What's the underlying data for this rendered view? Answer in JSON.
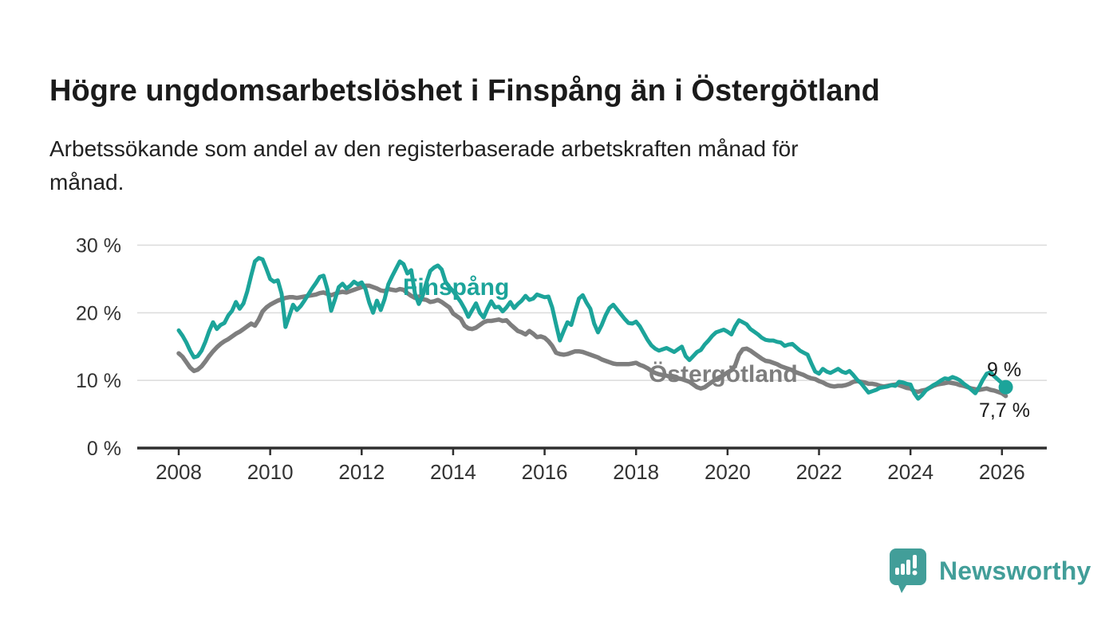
{
  "header": {
    "title": "Högre ungdomsarbetslöshet i Finspång än i Östergötland",
    "subtitle_line1": "Arbetssökande som andel av den registerbaserade arbetskraften månad för",
    "subtitle_line2": "månad."
  },
  "chart_data": {
    "type": "line",
    "title": "Högre ungdomsarbetslöshet i Finspång än i Östergötland",
    "subtitle": "Arbetssökande som andel av den registerbaserade arbetskraften månad för månad.",
    "x_start": "2008-01",
    "x_end": "2026-02",
    "frequency": "monthly",
    "ylim": [
      0,
      30
    ],
    "grid": "horizontal",
    "yticks": [
      {
        "value": 0,
        "label": "0 %"
      },
      {
        "value": 10,
        "label": "10 %"
      },
      {
        "value": 20,
        "label": "20 %"
      },
      {
        "value": 30,
        "label": "30 %"
      }
    ],
    "xticks": [
      {
        "year": 2008,
        "label": "2008"
      },
      {
        "year": 2010,
        "label": "2010"
      },
      {
        "year": 2012,
        "label": "2012"
      },
      {
        "year": 2014,
        "label": "2014"
      },
      {
        "year": 2016,
        "label": "2016"
      },
      {
        "year": 2018,
        "label": "2018"
      },
      {
        "year": 2020,
        "label": "2020"
      },
      {
        "year": 2022,
        "label": "2022"
      },
      {
        "year": 2024,
        "label": "2024"
      },
      {
        "year": 2026,
        "label": "2026"
      }
    ],
    "series": [
      {
        "name": "Finspång",
        "color": "#1ca49a",
        "end_label": "9 %",
        "end_value": 9.0,
        "values": [
          17.4,
          16.6,
          15.6,
          14.4,
          13.4,
          13.6,
          14.4,
          15.7,
          17.3,
          18.6,
          17.6,
          18.2,
          18.5,
          19.6,
          20.3,
          21.6,
          20.6,
          21.4,
          23.2,
          25.5,
          27.6,
          28.1,
          27.9,
          26.5,
          25.0,
          24.6,
          24.8,
          22.8,
          17.9,
          19.5,
          21.2,
          20.4,
          21.0,
          21.8,
          22.7,
          23.6,
          24.4,
          25.3,
          25.5,
          23.5,
          20.3,
          22.0,
          23.8,
          24.3,
          23.6,
          24.0,
          24.6,
          24.2,
          24.5,
          23.5,
          21.5,
          20.0,
          21.8,
          20.4,
          22.0,
          24.2,
          25.4,
          26.5,
          27.6,
          27.2,
          25.8,
          26.3,
          22.8,
          21.3,
          22.5,
          24.5,
          26.2,
          26.7,
          27.0,
          26.4,
          24.6,
          23.8,
          23.2,
          22.4,
          21.6,
          20.6,
          19.4,
          20.4,
          21.4,
          20.0,
          19.3,
          20.6,
          21.7,
          20.8,
          20.9,
          20.2,
          20.8,
          21.6,
          20.7,
          21.3,
          21.8,
          22.5,
          21.9,
          22.1,
          22.7,
          22.5,
          22.3,
          22.4,
          20.8,
          18.3,
          15.9,
          17.3,
          18.6,
          18.2,
          20.2,
          22.1,
          22.6,
          21.5,
          20.6,
          18.4,
          17.1,
          18.2,
          19.6,
          20.7,
          21.2,
          20.5,
          19.8,
          19.1,
          18.5,
          18.4,
          18.7,
          18.0,
          17.0,
          16.0,
          15.2,
          14.7,
          14.4,
          14.6,
          14.8,
          14.5,
          14.2,
          14.6,
          15.0,
          13.6,
          13.0,
          13.6,
          14.2,
          14.5,
          15.3,
          15.9,
          16.6,
          17.1,
          17.3,
          17.5,
          17.2,
          16.8,
          18.0,
          18.9,
          18.6,
          18.3,
          17.6,
          17.2,
          16.8,
          16.3,
          16.0,
          15.9,
          15.9,
          15.7,
          15.6,
          15.1,
          15.3,
          15.4,
          14.9,
          14.4,
          14.1,
          13.8,
          12.5,
          11.3,
          11.0,
          11.7,
          11.3,
          11.1,
          11.4,
          11.7,
          11.3,
          11.1,
          11.4,
          10.8,
          10.1,
          9.6,
          8.9,
          8.2,
          8.4,
          8.6,
          8.9,
          9.0,
          9.1,
          9.3,
          9.2,
          9.8,
          9.7,
          9.5,
          9.4,
          8.1,
          7.3,
          7.8,
          8.5,
          8.9,
          9.3,
          9.6,
          10.0,
          10.3,
          10.2,
          10.5,
          10.3,
          10.0,
          9.5,
          9.1,
          8.6,
          8.1,
          9.0,
          10.1,
          11.0,
          11.2,
          10.6,
          10.1,
          9.6,
          9.0
        ]
      },
      {
        "name": "Östergötland",
        "color": "#7e7e7e",
        "end_label": "7,7 %",
        "end_value": 7.7,
        "values": [
          14.0,
          13.5,
          12.7,
          11.9,
          11.4,
          11.6,
          12.1,
          12.8,
          13.6,
          14.3,
          14.9,
          15.4,
          15.8,
          16.1,
          16.5,
          16.9,
          17.2,
          17.6,
          18.0,
          18.4,
          18.1,
          19.0,
          20.2,
          20.8,
          21.2,
          21.5,
          21.8,
          22.0,
          22.2,
          22.3,
          22.3,
          22.2,
          22.3,
          22.4,
          22.5,
          22.6,
          22.7,
          22.9,
          23.0,
          22.8,
          22.6,
          22.8,
          23.0,
          23.1,
          23.0,
          23.2,
          23.4,
          23.6,
          23.8,
          24.0,
          24.0,
          23.8,
          23.6,
          23.3,
          23.2,
          23.5,
          23.4,
          23.3,
          23.5,
          23.4,
          22.9,
          22.5,
          22.2,
          22.4,
          22.0,
          21.9,
          21.6,
          21.7,
          21.9,
          21.6,
          21.2,
          20.8,
          19.9,
          19.5,
          19.1,
          18.1,
          17.7,
          17.6,
          17.8,
          18.2,
          18.6,
          18.8,
          18.8,
          18.9,
          19.0,
          18.8,
          18.9,
          18.3,
          17.8,
          17.3,
          17.1,
          16.8,
          17.3,
          16.9,
          16.4,
          16.5,
          16.3,
          15.8,
          15.1,
          14.1,
          13.9,
          13.8,
          13.9,
          14.1,
          14.3,
          14.3,
          14.2,
          14.0,
          13.8,
          13.6,
          13.4,
          13.1,
          12.9,
          12.7,
          12.5,
          12.4,
          12.4,
          12.4,
          12.4,
          12.5,
          12.6,
          12.3,
          12.1,
          11.8,
          11.4,
          11.1,
          10.9,
          10.8,
          10.7,
          10.5,
          10.4,
          10.3,
          10.2,
          10.0,
          9.8,
          9.4,
          9.0,
          8.8,
          9.0,
          9.4,
          9.8,
          10.2,
          10.5,
          10.8,
          11.2,
          11.5,
          12.2,
          13.8,
          14.6,
          14.7,
          14.4,
          14.0,
          13.6,
          13.2,
          12.9,
          12.8,
          12.6,
          12.4,
          12.1,
          11.9,
          11.7,
          11.5,
          11.2,
          11.0,
          10.8,
          10.5,
          10.3,
          10.2,
          9.9,
          9.7,
          9.4,
          9.2,
          9.1,
          9.2,
          9.2,
          9.3,
          9.5,
          9.8,
          9.9,
          9.8,
          9.7,
          9.5,
          9.5,
          9.4,
          9.2,
          9.1,
          9.2,
          9.3,
          9.4,
          9.3,
          9.1,
          8.9,
          8.8,
          8.4,
          8.3,
          8.5,
          8.6,
          8.9,
          9.2,
          9.4,
          9.5,
          9.6,
          9.7,
          9.6,
          9.5,
          9.3,
          9.2,
          9.0,
          8.8,
          8.7,
          8.6,
          8.7,
          8.8,
          8.6,
          8.5,
          8.3,
          8.1,
          7.7
        ]
      }
    ],
    "colors": {
      "finspang": "#1ca49a",
      "ostergotland": "#7e7e7e",
      "gridline": "#dbdbdb",
      "axis": "#2f2f2f",
      "axis_text": "#333333",
      "annotation_text": "#1b1b1b"
    },
    "legend_position": "inline-labels"
  },
  "branding": {
    "logo_text": "Newsworthy",
    "color": "#429e99"
  }
}
